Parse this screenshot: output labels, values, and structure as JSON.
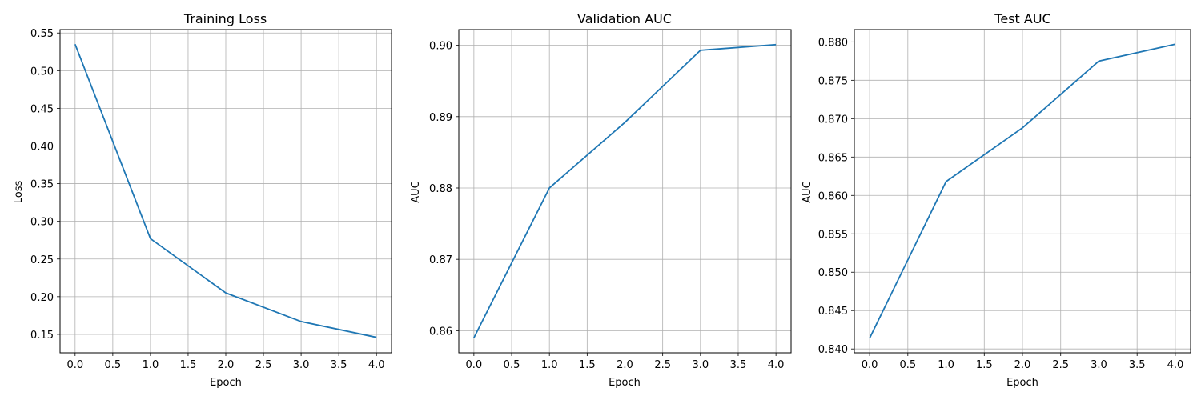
{
  "chart_data": [
    {
      "type": "line",
      "title": "Training Loss",
      "xlabel": "Epoch",
      "ylabel": "Loss",
      "x": [
        0,
        1,
        2,
        3,
        4
      ],
      "series": [
        {
          "name": "train_loss",
          "values": [
            0.535,
            0.277,
            0.205,
            0.167,
            0.146
          ],
          "color": "#1f77b4"
        }
      ],
      "xlim": [
        -0.2,
        4.2
      ],
      "ylim": [
        0.1255,
        0.5545
      ],
      "xticks": [
        0,
        0.5,
        1,
        1.5,
        2,
        2.5,
        3,
        3.5,
        4
      ],
      "xtick_labels": [
        "0.0",
        "0.5",
        "1.0",
        "1.5",
        "2.0",
        "2.5",
        "3.0",
        "3.5",
        "4.0"
      ],
      "yticks": [
        0.15,
        0.2,
        0.25,
        0.3,
        0.35,
        0.4,
        0.45,
        0.5,
        0.55
      ],
      "ytick_labels": [
        "0.15",
        "0.20",
        "0.25",
        "0.30",
        "0.35",
        "0.40",
        "0.45",
        "0.50",
        "0.55"
      ],
      "grid": true
    },
    {
      "type": "line",
      "title": "Validation AUC",
      "xlabel": "Epoch",
      "ylabel": "AUC",
      "x": [
        0,
        1,
        2,
        3,
        4
      ],
      "series": [
        {
          "name": "val_auc",
          "values": [
            0.859,
            0.88,
            0.8892,
            0.8993,
            0.9001
          ],
          "color": "#1f77b4"
        }
      ],
      "xlim": [
        -0.2,
        4.2
      ],
      "ylim": [
        0.8569,
        0.9022
      ],
      "xticks": [
        0,
        0.5,
        1,
        1.5,
        2,
        2.5,
        3,
        3.5,
        4
      ],
      "xtick_labels": [
        "0.0",
        "0.5",
        "1.0",
        "1.5",
        "2.0",
        "2.5",
        "3.0",
        "3.5",
        "4.0"
      ],
      "yticks": [
        0.86,
        0.87,
        0.88,
        0.89,
        0.9
      ],
      "ytick_labels": [
        "0.86",
        "0.87",
        "0.88",
        "0.89",
        "0.90"
      ],
      "grid": true
    },
    {
      "type": "line",
      "title": "Test AUC",
      "xlabel": "Epoch",
      "ylabel": "AUC",
      "x": [
        0,
        1,
        2,
        3,
        4
      ],
      "series": [
        {
          "name": "test_auc",
          "values": [
            0.8414,
            0.8618,
            0.8688,
            0.8775,
            0.8797
          ],
          "color": "#1f77b4"
        }
      ],
      "xlim": [
        -0.2,
        4.2
      ],
      "ylim": [
        0.8395,
        0.8816
      ],
      "xticks": [
        0,
        0.5,
        1,
        1.5,
        2,
        2.5,
        3,
        3.5,
        4
      ],
      "xtick_labels": [
        "0.0",
        "0.5",
        "1.0",
        "1.5",
        "2.0",
        "2.5",
        "3.0",
        "3.5",
        "4.0"
      ],
      "yticks": [
        0.84,
        0.845,
        0.85,
        0.855,
        0.86,
        0.865,
        0.87,
        0.875,
        0.88
      ],
      "ytick_labels": [
        "0.840",
        "0.845",
        "0.850",
        "0.855",
        "0.860",
        "0.865",
        "0.870",
        "0.875",
        "0.880"
      ],
      "grid": true
    }
  ]
}
